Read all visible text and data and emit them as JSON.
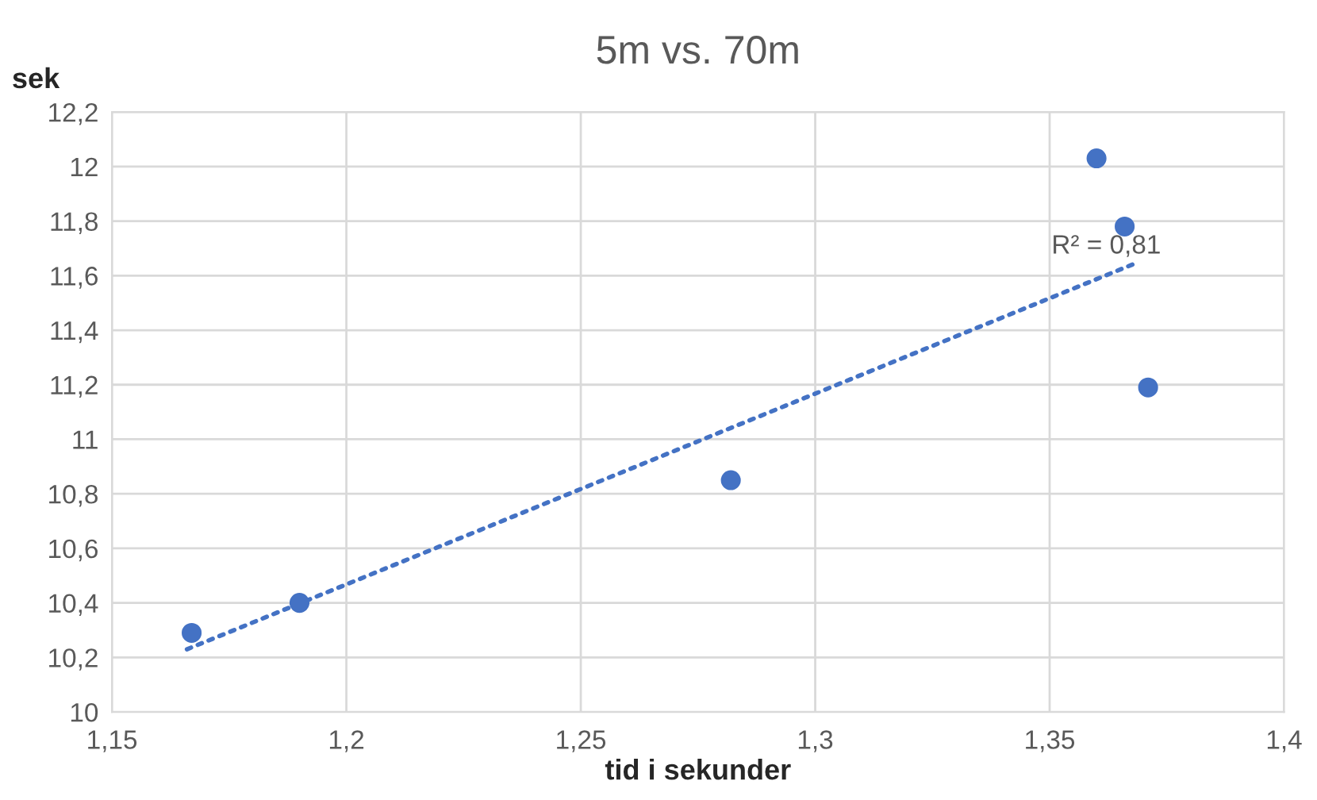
{
  "chart_data": {
    "type": "scatter",
    "title": "5m vs. 70m",
    "xlabel": "tid i sekunder",
    "ylabel": "sek",
    "series": [
      {
        "color": "#4472c4",
        "marker": "circle",
        "x": [
          1.167,
          1.19,
          1.282,
          1.36,
          1.366,
          1.371
        ],
        "values": [
          10.29,
          10.4,
          10.85,
          12.03,
          11.78,
          11.19
        ]
      },
      {
        "type": "line",
        "color": "#4472c4",
        "line_style": "dotted",
        "x": [
          1.166,
          1.369
        ],
        "values": [
          10.23,
          11.65
        ]
      }
    ],
    "annotations": [
      "R² = 0,81"
    ],
    "xlim": [
      1.15,
      1.4
    ],
    "xticks": [
      {
        "value": 1.15,
        "label": "1,15"
      },
      {
        "value": 1.2,
        "label": "1,2"
      },
      {
        "value": 1.25,
        "label": "1,25"
      },
      {
        "value": 1.3,
        "label": "1,3"
      },
      {
        "value": 1.35,
        "label": "1,35"
      },
      {
        "value": 1.4,
        "label": "1,4"
      }
    ],
    "ylim": [
      10,
      12.2
    ],
    "yticks": [
      10,
      {
        "value": 10.2,
        "label": "10,2"
      },
      {
        "value": 10.4,
        "label": "10,4"
      },
      {
        "value": 10.6,
        "label": "10,6"
      },
      {
        "value": 10.8,
        "label": "10,8"
      },
      11,
      {
        "value": 11.2,
        "label": "11,2"
      },
      {
        "value": 11.4,
        "label": "11,4"
      },
      {
        "value": 11.6,
        "label": "11,6"
      },
      {
        "value": 11.8,
        "label": "11,8"
      },
      12,
      {
        "value": 12.2,
        "label": "12,2"
      }
    ],
    "grid": true
  }
}
